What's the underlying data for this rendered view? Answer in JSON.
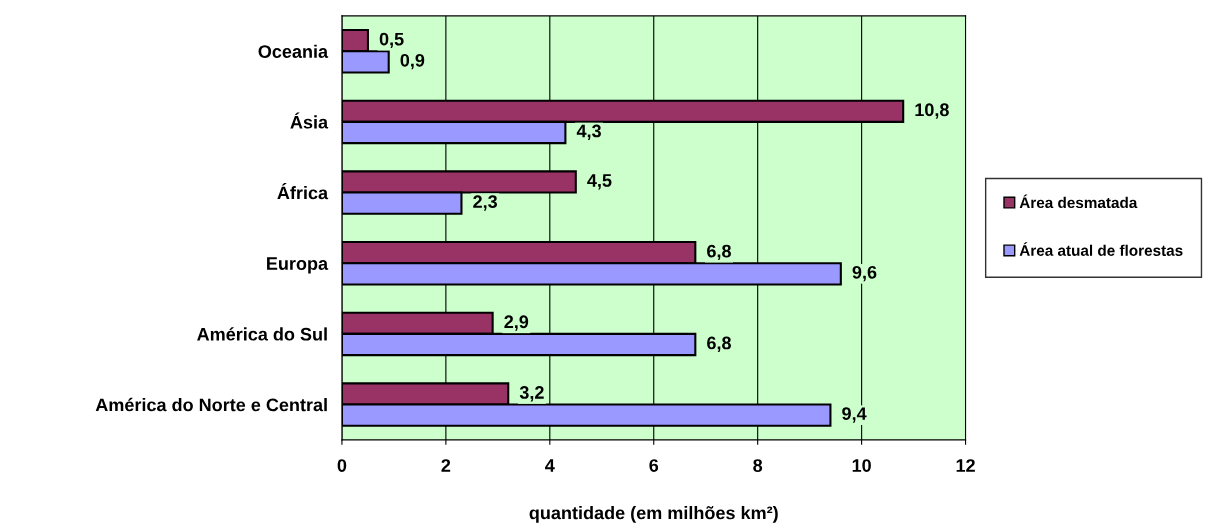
{
  "chart_data": {
    "type": "bar",
    "orientation": "horizontal",
    "xlabel": "quantidade (em milhões km²)",
    "categories": [
      "Oceania",
      "Ásia",
      "África",
      "Europa",
      "América do Sul",
      "América do Norte e Central"
    ],
    "series": [
      {
        "name": "Área desmatada",
        "color": "#993366",
        "values": [
          0.5,
          10.8,
          4.5,
          6.8,
          2.9,
          3.2
        ],
        "value_labels": [
          "0,5",
          "10,8",
          "4,5",
          "6,8",
          "2,9",
          "3,2"
        ]
      },
      {
        "name": "Área atual de florestas",
        "color": "#9999ff",
        "values": [
          0.9,
          4.3,
          2.3,
          9.6,
          6.8,
          9.4
        ],
        "value_labels": [
          "0,9",
          "4,3",
          "2,3",
          "9,6",
          "6,8",
          "9,4"
        ]
      }
    ],
    "xlim": [
      0,
      12
    ],
    "xticks": [
      0,
      2,
      4,
      6,
      8,
      10,
      12
    ],
    "grid": "x",
    "legend": "right"
  }
}
